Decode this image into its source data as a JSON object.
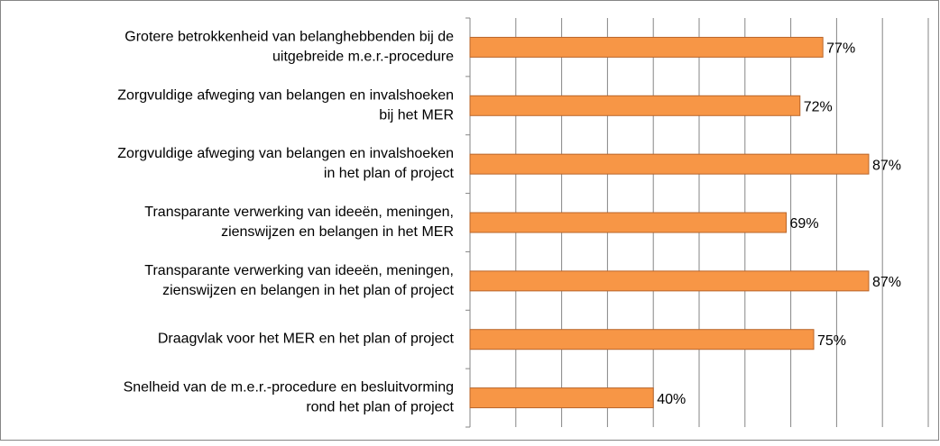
{
  "chart_data": {
    "type": "bar",
    "orientation": "horizontal",
    "categories": [
      "Grotere betrokkenheid van belanghebbenden bij de\nuitgebreide m.e.r.-procedure",
      "Zorgvuldige afweging  van belangen en invalshoeken\nbij het MER",
      "Zorgvuldige afweging  van belangen en invalshoeken\nin het plan of project",
      "Transparante verwerking van ideeën, meningen,\nzienswijzen en belangen in het MER",
      "Transparante verwerking van ideeën, meningen,\nzienswijzen en belangen in het plan of project",
      "Draagvlak voor het MER en het plan of project",
      "Snelheid van de m.e.r.-procedure en besluitvorming\nrond het plan of project"
    ],
    "values": [
      77,
      72,
      87,
      69,
      87,
      75,
      40
    ],
    "value_labels": [
      "77%",
      "72%",
      "87%",
      "69%",
      "87%",
      "75%",
      "40%"
    ],
    "color": "#f79646",
    "xlim": [
      0,
      100
    ],
    "xticks": [
      0,
      10,
      20,
      30,
      40,
      50,
      60,
      70,
      80,
      90,
      100
    ],
    "grid": true
  }
}
